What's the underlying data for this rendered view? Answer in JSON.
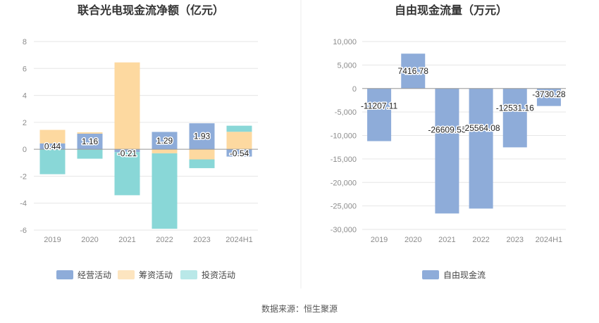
{
  "chart_data": [
    {
      "type": "bar",
      "stacked": true,
      "title": "联合光电现金流净额（亿元）",
      "categories": [
        "2019",
        "2020",
        "2021",
        "2022",
        "2023",
        "2024H1"
      ],
      "ylim": [
        -6,
        8
      ],
      "yticks": [
        -6,
        -4,
        -2,
        0,
        2,
        4,
        6,
        8
      ],
      "grid": true,
      "legend_position": "bottom",
      "series": [
        {
          "name": "经营活动",
          "color": "#8eacd9",
          "values": [
            0.44,
            1.16,
            -0.21,
            1.29,
            1.93,
            -0.54
          ],
          "labels": [
            "0.44",
            "1.16",
            "-0.21",
            "1.29",
            "1.93",
            "-0.54"
          ]
        },
        {
          "name": "筹资活动",
          "color": "#fdd9a0",
          "values": [
            1.0,
            0.1,
            6.45,
            -0.3,
            -0.75,
            1.3
          ],
          "labels": null
        },
        {
          "name": "投资活动",
          "color": "#89d7d7",
          "values": [
            -1.85,
            -0.7,
            -3.2,
            -5.6,
            -0.65,
            0.45
          ],
          "labels": null
        }
      ],
      "legend_colors": [
        "#8eacd9",
        "#fde5c0",
        "#b9e8e8"
      ]
    },
    {
      "type": "bar",
      "title": "自由现金流量（万元）",
      "categories": [
        "2019",
        "2020",
        "2021",
        "2022",
        "2023",
        "2024H1"
      ],
      "ylim": [
        -30000,
        10000
      ],
      "yticks": [
        -30000,
        -25000,
        -20000,
        -15000,
        -10000,
        -5000,
        0,
        5000,
        10000
      ],
      "ytick_labels": [
        "-30,000",
        "-25,000",
        "-20,000",
        "-15,000",
        "-10,000",
        "-5,000",
        "0",
        "5,000",
        "10,000"
      ],
      "grid": true,
      "legend_position": "bottom",
      "series": [
        {
          "name": "自由现金流",
          "color": "#8eacd9",
          "values": [
            -11207.11,
            7416.78,
            -26609.53,
            -25564.08,
            -12531.16,
            -3730.28
          ],
          "labels": [
            "-11207.11",
            "7416.78",
            "-26609.53",
            "-25564.08",
            "-12531.16",
            "-3730.28"
          ]
        }
      ]
    }
  ],
  "source": "数据来源：恒生聚源"
}
